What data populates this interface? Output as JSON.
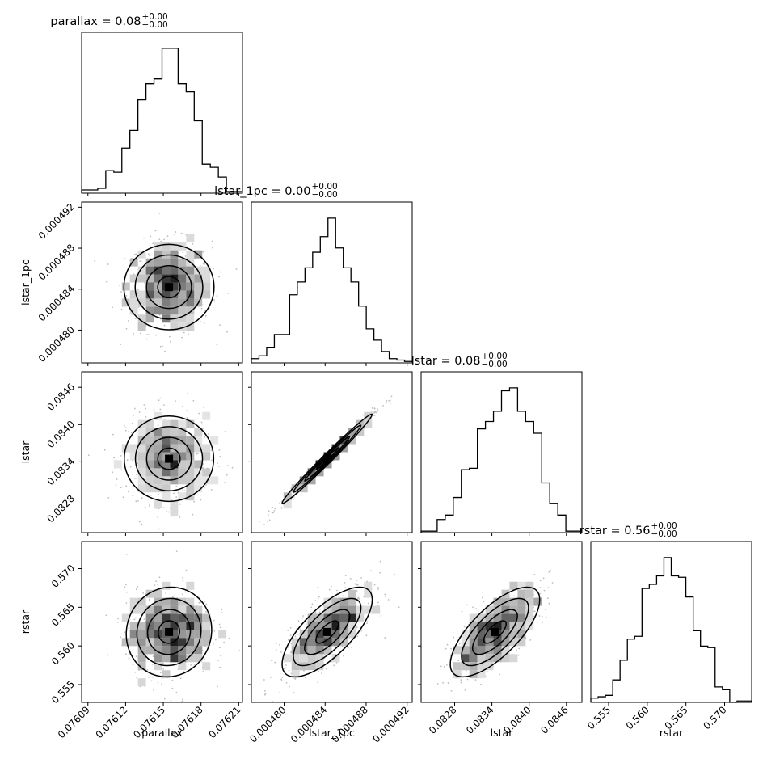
{
  "chart_data": {
    "type": "corner",
    "parameters": [
      {
        "name": "parallax",
        "label": "parallax",
        "title_value": "0.08",
        "title_plus": "+0.00",
        "title_minus": "−0.00",
        "range": [
          0.076085,
          0.076213
        ],
        "ticks": [
          0.07609,
          0.07612,
          0.07615,
          0.07618,
          0.07621
        ],
        "tick_labels": [
          "0.07609",
          "0.07612",
          "0.07615",
          "0.07618",
          "0.07621"
        ]
      },
      {
        "name": "lstar_1pc",
        "label": "lstar_1pc",
        "title_value": "0.00",
        "title_plus": "+0.00",
        "title_minus": "−0.00",
        "range": [
          0.0004768,
          0.0004925
        ],
        "ticks": [
          0.00048,
          0.000484,
          0.000488,
          0.000492
        ],
        "tick_labels": [
          "0.000480",
          "0.000484",
          "0.000488",
          "0.000492"
        ]
      },
      {
        "name": "lstar",
        "label": "lstar",
        "title_value": "0.08",
        "title_plus": "+0.00",
        "title_minus": "−0.00",
        "range": [
          0.08226,
          0.08485
        ],
        "ticks": [
          0.0828,
          0.0834,
          0.084,
          0.0846
        ],
        "tick_labels": [
          "0.0828",
          "0.0834",
          "0.0840",
          "0.0846"
        ]
      },
      {
        "name": "rstar",
        "label": "rstar",
        "title_value": "0.56",
        "title_plus": "+0.00",
        "title_minus": "−0.00",
        "range": [
          0.5527,
          0.5735
        ],
        "ticks": [
          0.555,
          0.56,
          0.565,
          0.57
        ],
        "tick_labels": [
          "0.555",
          "0.560",
          "0.565",
          "0.570"
        ]
      }
    ],
    "histograms": [
      [
        2,
        2,
        3,
        14,
        13,
        28,
        39,
        58,
        68,
        71,
        90,
        90,
        68,
        63,
        45,
        18,
        16,
        10,
        1,
        1
      ],
      [
        3,
        5,
        11,
        20,
        20,
        48,
        57,
        67,
        78,
        89,
        102,
        81,
        67,
        57,
        40,
        24,
        16,
        8,
        3,
        2,
        1
      ],
      [
        1,
        1,
        9,
        12,
        24,
        43,
        44,
        71,
        76,
        83,
        97,
        99,
        83,
        76,
        68,
        34,
        20,
        12,
        1,
        1
      ],
      [
        3,
        4,
        5,
        16,
        30,
        45,
        47,
        81,
        84,
        90,
        103,
        90,
        89,
        75,
        51,
        40,
        39,
        11,
        9,
        0,
        1,
        1
      ]
    ],
    "correlations": {
      "1-0": 0.0,
      "2-0": 0.0,
      "2-1": 0.99,
      "3-0": 0.05,
      "3-1": 0.72,
      "3-2": 0.72
    },
    "stats": {
      "mean": [
        0.0761545,
        0.0004842,
        0.08345,
        0.5618
      ],
      "std": [
        1.7e-05,
        2.2e-06,
        0.00036,
        0.0029
      ]
    },
    "grid": false,
    "legend": "none"
  }
}
